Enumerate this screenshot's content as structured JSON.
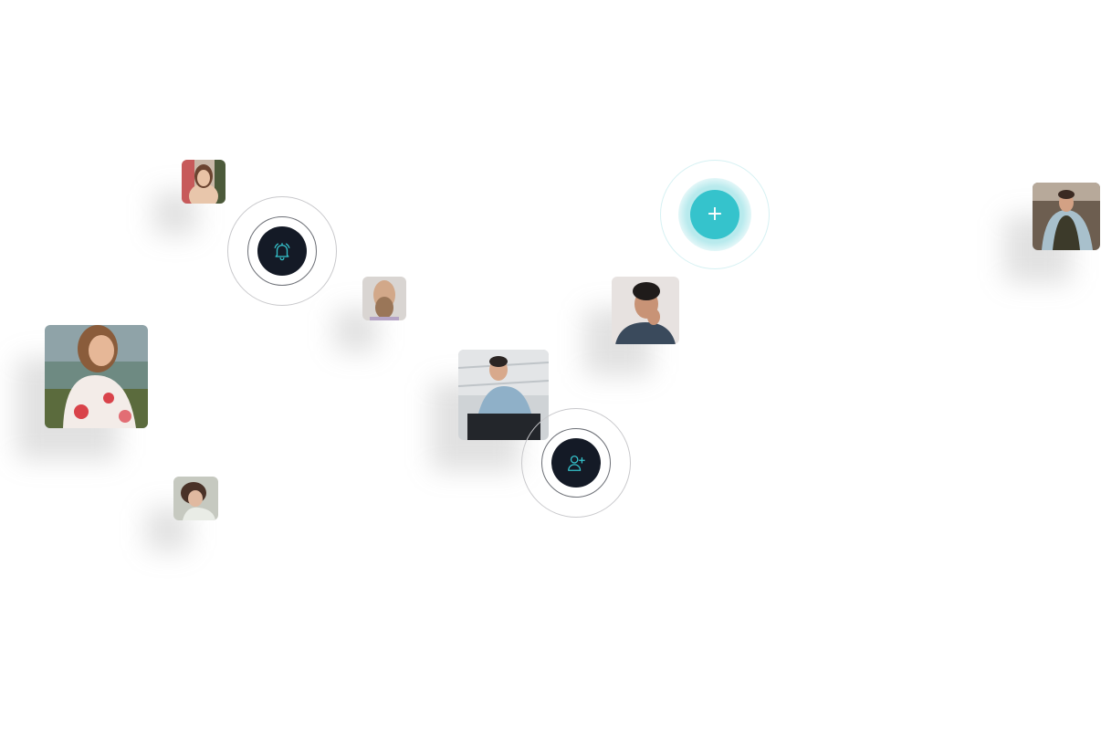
{
  "actions": {
    "add_button": {
      "label": "+",
      "icon": "plus-icon",
      "color": "#35c3cc"
    },
    "notification_button": {
      "icon": "bell-ringing-icon",
      "color": "#141a26",
      "icon_color": "#35c3cc"
    },
    "add_user_button": {
      "icon": "user-plus-icon",
      "color": "#141a26",
      "icon_color": "#35c3cc"
    }
  },
  "avatars": [
    {
      "name": "woman-hand-on-chin",
      "icon": "person-photo"
    },
    {
      "name": "bearded-man",
      "icon": "person-photo"
    },
    {
      "name": "smiling-woman-floral-dress",
      "icon": "person-photo"
    },
    {
      "name": "curly-hair-woman",
      "icon": "person-photo"
    },
    {
      "name": "person-denim-jacket-sitting",
      "icon": "person-photo"
    },
    {
      "name": "man-hand-on-cheek",
      "icon": "person-photo"
    },
    {
      "name": "man-crouching-outdoors",
      "icon": "person-photo"
    }
  ]
}
